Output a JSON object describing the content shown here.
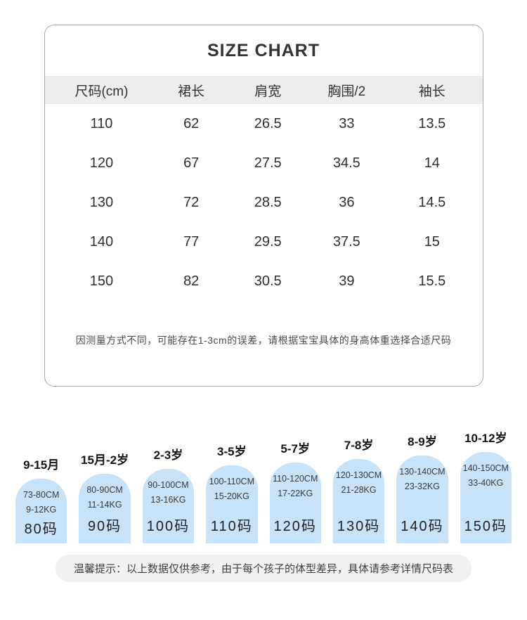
{
  "size_chart": {
    "title": "SIZE CHART",
    "columns": [
      "尺码(cm)",
      "裙长",
      "肩宽",
      "胸围/2",
      "袖长"
    ],
    "rows": [
      [
        "110",
        "62",
        "26.5",
        "33",
        "13.5"
      ],
      [
        "120",
        "67",
        "27.5",
        "34.5",
        "14"
      ],
      [
        "130",
        "72",
        "28.5",
        "36",
        "14.5"
      ],
      [
        "140",
        "77",
        "29.5",
        "37.5",
        "15"
      ],
      [
        "150",
        "82",
        "30.5",
        "39",
        "15.5"
      ]
    ],
    "note": "因测量方式不同，可能存在1-3cm的误差，请根据宝宝具体的身高体重选择合适尺码"
  },
  "age_guide": {
    "items": [
      {
        "age": "9-15月",
        "height": "73-80CM",
        "weight": "9-12KG",
        "size": "80码"
      },
      {
        "age": "15月-2岁",
        "height": "80-90CM",
        "weight": "11-14KG",
        "size": "90码"
      },
      {
        "age": "2-3岁",
        "height": "90-100CM",
        "weight": "13-16KG",
        "size": "100码"
      },
      {
        "age": "3-5岁",
        "height": "100-110CM",
        "weight": "15-20KG",
        "size": "110码"
      },
      {
        "age": "5-7岁",
        "height": "110-120CM",
        "weight": "17-22KG",
        "size": "120码"
      },
      {
        "age": "7-8岁",
        "height": "120-130CM",
        "weight": "21-28KG",
        "size": "130码"
      },
      {
        "age": "8-9岁",
        "height": "130-140CM",
        "weight": "23-32KG",
        "size": "140码"
      },
      {
        "age": "10-12岁",
        "height": "140-150CM",
        "weight": "33-40KG",
        "size": "150码"
      }
    ]
  },
  "footer_tip": "温馨提示：以上数据仅供参考，由于每个孩子的体型差异，具体请参考详情尺码表",
  "colors": {
    "bubble_blue": "#c8e2f8",
    "header_gray": "#ededed",
    "pill_gray": "#f1f1f1",
    "border_gray": "#a8a8a8"
  },
  "chart_data": {
    "type": "table",
    "title": "SIZE CHART",
    "columns": [
      "尺码(cm)",
      "裙长",
      "肩宽",
      "胸围/2",
      "袖长"
    ],
    "rows": [
      [
        110,
        62,
        26.5,
        33,
        13.5
      ],
      [
        120,
        67,
        27.5,
        34.5,
        14
      ],
      [
        130,
        72,
        28.5,
        36,
        14.5
      ],
      [
        140,
        77,
        29.5,
        37.5,
        15
      ],
      [
        150,
        82,
        30.5,
        39,
        15.5
      ]
    ],
    "age_size_mapping": [
      {
        "age": "9-15月",
        "height_cm": "73-80",
        "weight_kg": "9-12",
        "size": 80
      },
      {
        "age": "15月-2岁",
        "height_cm": "80-90",
        "weight_kg": "11-14",
        "size": 90
      },
      {
        "age": "2-3岁",
        "height_cm": "90-100",
        "weight_kg": "13-16",
        "size": 100
      },
      {
        "age": "3-5岁",
        "height_cm": "100-110",
        "weight_kg": "15-20",
        "size": 110
      },
      {
        "age": "5-7岁",
        "height_cm": "110-120",
        "weight_kg": "17-22",
        "size": 120
      },
      {
        "age": "7-8岁",
        "height_cm": "120-130",
        "weight_kg": "21-28",
        "size": 130
      },
      {
        "age": "8-9岁",
        "height_cm": "130-140",
        "weight_kg": "23-32",
        "size": 140
      },
      {
        "age": "10-12岁",
        "height_cm": "140-150",
        "weight_kg": "33-40",
        "size": 150
      }
    ]
  }
}
